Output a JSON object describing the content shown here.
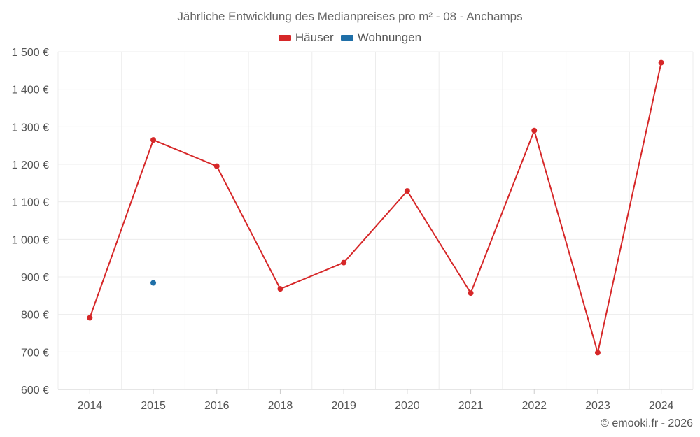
{
  "chart_data": {
    "type": "line",
    "title": "Jährliche Entwicklung des Medianpreises pro m² - 08 - Anchamps",
    "categories": [
      "2014",
      "2015",
      "2016",
      "2018",
      "2019",
      "2020",
      "2021",
      "2022",
      "2023",
      "2024"
    ],
    "series": [
      {
        "name": "Häuser",
        "color": "#d62728",
        "values": [
          791,
          1265,
          1195,
          868,
          938,
          1129,
          857,
          1290,
          698,
          1471
        ]
      },
      {
        "name": "Wohnungen",
        "color": "#1f6fa8",
        "values": [
          null,
          884,
          null,
          null,
          null,
          null,
          null,
          null,
          null,
          null
        ]
      }
    ],
    "yticks": [
      "1 500 €",
      "1 400 €",
      "1 300 €",
      "1 200 €",
      "1 100 €",
      "1 000 €",
      "900 €",
      "800 €",
      "700 €",
      "600 €"
    ],
    "ylim": [
      600,
      1500
    ],
    "xlabel": "",
    "ylabel": "",
    "grid": true,
    "legend_position": "top-center"
  },
  "footer": {
    "credit": "© emooki.fr - 2026"
  }
}
